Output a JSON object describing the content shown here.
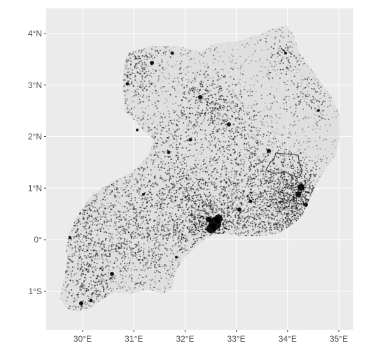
{
  "map": {
    "panel_background": "#ebebeb",
    "grid_color": "#ffffff",
    "point_color": "#000000",
    "outline_color": "#333333",
    "graticule": {
      "lon": [
        {
          "value": 30,
          "label": "30°E"
        },
        {
          "value": 31,
          "label": "31°E"
        },
        {
          "value": 32,
          "label": "32°E"
        },
        {
          "value": 33,
          "label": "33°E"
        },
        {
          "value": 34,
          "label": "34°E"
        },
        {
          "value": 35,
          "label": "35°E"
        }
      ],
      "lat": [
        {
          "value": 4,
          "label": "4°N"
        },
        {
          "value": 3,
          "label": "3°N"
        },
        {
          "value": 2,
          "label": "2°N"
        },
        {
          "value": 1,
          "label": "1°N"
        },
        {
          "value": 0,
          "label": "0°"
        },
        {
          "value": -1,
          "label": "1°S"
        }
      ]
    }
  }
}
